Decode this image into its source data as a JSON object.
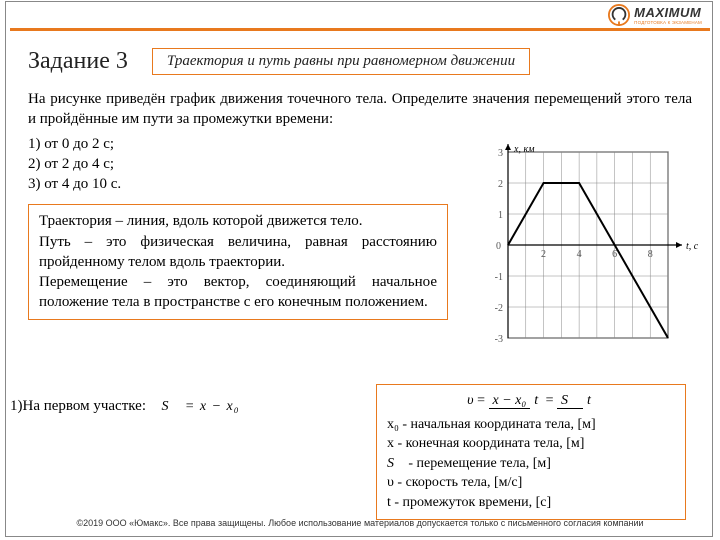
{
  "logo": {
    "main": "MAXIMUM",
    "sub": "ПОДГОТОВКА К ЭКЗАМЕНАМ"
  },
  "task": {
    "title": "Задание 3"
  },
  "aphorism": "Траектория и путь равны при равномерном движении",
  "problem": "На рисунке приведён график движения точечного тела. Определите значения перемещений этого тела и пройдённые им пути за промежутки времени:",
  "list": {
    "a": "1) от 0 до 2 с;",
    "b": "2) от 2 до 4 с;",
    "c": "3) от 4 до 10 с."
  },
  "defs": {
    "l1": "Траектория – линия, вдоль которой движется тело.",
    "l2": "Путь – это физическая величина, равная расстоянию пройденному телом вдоль траектории.",
    "l3": "Перемещение – это вектор, соединяющий начальное положение тела в пространстве с его конечным положением."
  },
  "step1": {
    "label": "1)На первом участке:",
    "formula": "S⃗ = x − x₀"
  },
  "vars": {
    "eq_lhs": "υ",
    "eq_top1": "x − x₀",
    "eq_bot1": "t",
    "eq_top2": "S⃗",
    "eq_bot2": "t",
    "v1": "x₀ - начальная координата тела, [м]",
    "v2": "x - конечная координата тела, [м]",
    "v3_sym": "S⃗",
    "v3_txt": " - перемещение тела, [м]",
    "v4": "υ - скорость тела, [м/с]",
    "v5": "t - промежуток времени, [с]"
  },
  "chart": {
    "type": "line",
    "x_label": "t, с",
    "y_label": "x, км",
    "xlim": [
      0,
      9
    ],
    "ylim": [
      -3,
      3
    ],
    "xticks": [
      2,
      4,
      6,
      8
    ],
    "yticks": [
      -3,
      -2,
      -1,
      0,
      1,
      2,
      3
    ],
    "points": [
      [
        0,
        0
      ],
      [
        2,
        2
      ],
      [
        4,
        2
      ],
      [
        9,
        -3
      ]
    ],
    "line_color": "#000000",
    "line_width": 2,
    "grid_color": "#888888",
    "bg": "#ffffff",
    "axis_arrow": true,
    "font_size": 10
  },
  "footer": "©2019 ООО «Юмакс». Все права защищены. Любое использование материалов допускается только с письменного согласия компании"
}
